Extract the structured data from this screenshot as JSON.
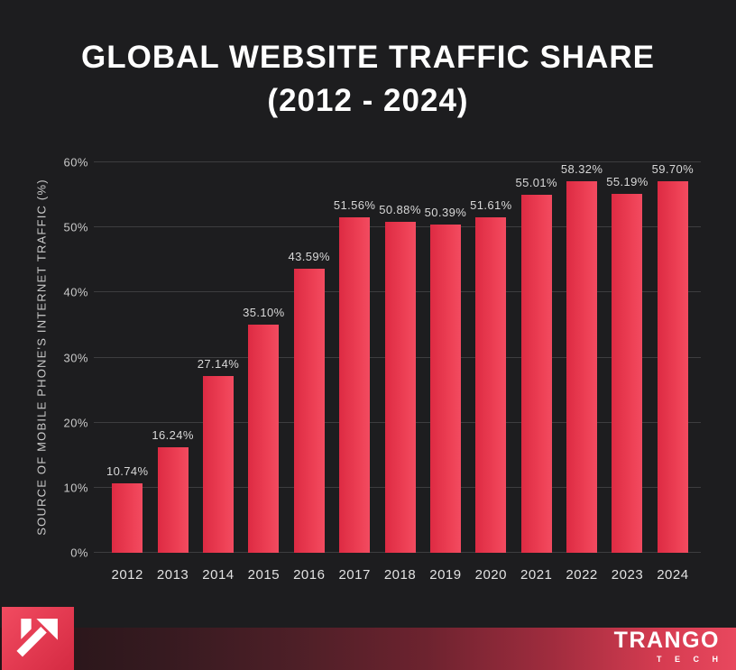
{
  "title": {
    "line1": "GLOBAL WEBSITE TRAFFIC SHARE",
    "line2": "(2012 - 2024)"
  },
  "chart_data": {
    "type": "bar",
    "title": "GLOBAL WEBSITE TRAFFIC SHARE (2012 - 2024)",
    "categories": [
      "2012",
      "2013",
      "2014",
      "2015",
      "2016",
      "2017",
      "2018",
      "2019",
      "2020",
      "2021",
      "2022",
      "2023",
      "2024"
    ],
    "values": [
      10.74,
      16.24,
      27.14,
      35.1,
      43.59,
      51.56,
      50.88,
      50.39,
      51.61,
      55.01,
      58.32,
      55.19,
      59.7
    ],
    "labels": [
      "10.74%",
      "16.24%",
      "27.14%",
      "35.10%",
      "43.59%",
      "51.56%",
      "50.88%",
      "50.39%",
      "51.61%",
      "55.01%",
      "58.32%",
      "55.19%",
      "59.70%"
    ],
    "xlabel": "",
    "ylabel": "SOURCE OF MOBILE PHONE'S INTERNET TRAFFIC (%)",
    "ylim": [
      0,
      60
    ],
    "yticks": [
      "0%",
      "10%",
      "20%",
      "30%",
      "40%",
      "50%",
      "60%"
    ],
    "grid": true,
    "legend": false
  },
  "footer": {
    "brand": "TRANGO",
    "brand_sub": "T E C H"
  },
  "colors": {
    "background": "#1d1d1f",
    "bar_red_start": "#dd2b43",
    "bar_red_end": "#f24b60",
    "gridline": "#3d3d3f",
    "label_text": "#d8d8d8",
    "tick_text": "#c9c9c9",
    "title_text": "#ffffff",
    "footer_band_left": "#231417",
    "footer_band_right": "#e8485e",
    "logo_red": "#e23950"
  }
}
